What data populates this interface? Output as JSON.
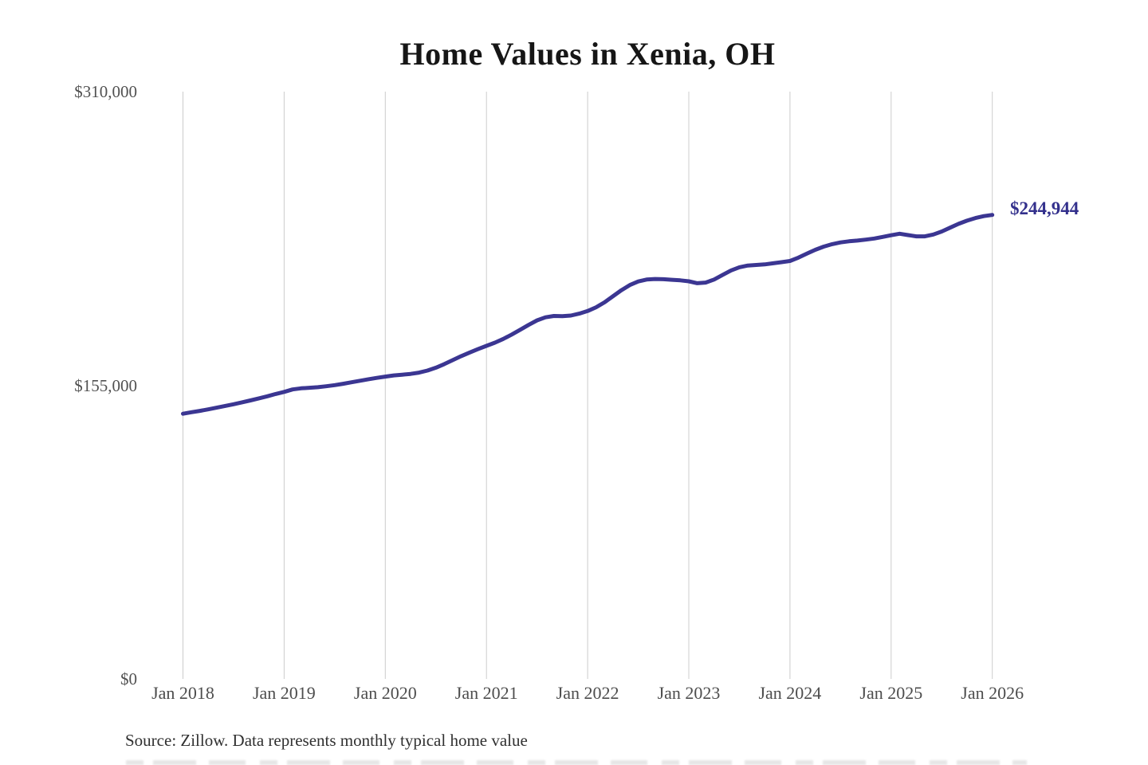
{
  "page": {
    "background": "#ffffff"
  },
  "chart_data": {
    "type": "line",
    "title": "Home Values in Xenia, OH",
    "source_note": "Source: Zillow. Data represents monthly typical home value",
    "grid": "vertical-only",
    "legend": "none",
    "x_tick_labels": [
      "Jan 2018",
      "Jan 2019",
      "Jan 2020",
      "Jan 2021",
      "Jan 2022",
      "Jan 2023",
      "Jan 2024",
      "Jan 2025",
      "Jan 2026"
    ],
    "y_ticks": [
      {
        "label": "$310,000",
        "value": 310000
      },
      {
        "label": "$155,000",
        "value": 155000
      },
      {
        "label": "$0",
        "value": 0
      }
    ],
    "ylim": [
      0,
      310000
    ],
    "x_range": {
      "start": "Jan 2018",
      "end": "Jan 2026",
      "interval": "monthly"
    },
    "end_label": {
      "text": "$244,944",
      "color": "#33308c"
    },
    "colors": {
      "line": "#3b3692",
      "gridline": "#cccccc",
      "axis_text": "#4d4d4d",
      "title_text": "#161616"
    },
    "series": [
      {
        "name": "Typical home value (USD)",
        "color": "#3b3692",
        "values": [
          140000,
          140800,
          141500,
          142300,
          143200,
          144100,
          145000,
          146000,
          147000,
          148100,
          149200,
          150400,
          151500,
          152800,
          153400,
          153700,
          154000,
          154500,
          155100,
          155800,
          156600,
          157400,
          158200,
          158900,
          159600,
          160200,
          160600,
          161000,
          161700,
          162800,
          164300,
          166200,
          168300,
          170400,
          172300,
          174100,
          175800,
          177500,
          179500,
          181800,
          184300,
          186900,
          189300,
          190900,
          191600,
          191500,
          191800,
          192800,
          194200,
          196200,
          198800,
          202000,
          205200,
          207900,
          209800,
          210800,
          211100,
          211000,
          210700,
          210400,
          209900,
          208900,
          209200,
          210800,
          213200,
          215600,
          217300,
          218200,
          218500,
          218800,
          219400,
          220000,
          220600,
          222400,
          224500,
          226500,
          228200,
          229500,
          230400,
          231000,
          231400,
          231900,
          232500,
          233300,
          234200,
          235000,
          234300,
          233600,
          233600,
          234600,
          236200,
          238200,
          240200,
          241900,
          243300,
          244300,
          244944
        ]
      }
    ]
  }
}
